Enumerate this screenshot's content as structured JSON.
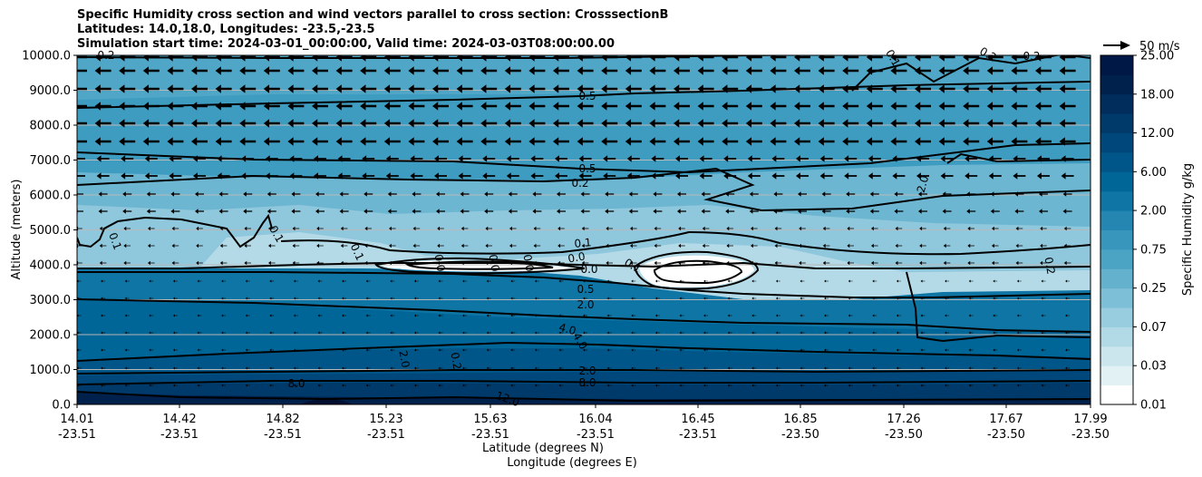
{
  "titles": [
    "Specific Humidity cross section and wind vectors parallel to cross section: CrosssectionB",
    "Latitudes: 14.0,18.0, Longitudes: -23.5,-23.5",
    "Simulation start time: 2024-03-01_00:00:00, Valid time: 2024-03-03T08:00:00.00"
  ],
  "chart_data": {
    "type": "contourf-cross-section",
    "title": "Specific Humidity cross section and wind vectors parallel to cross section: CrosssectionB",
    "ylabel": "Altitude (meters)",
    "xlabel_1": "Latitude (degrees N)",
    "xlabel_2": "Longitude (degrees E)",
    "ylim": [
      0,
      10000
    ],
    "y_ticks": [
      "0.0",
      "1000.0",
      "2000.0",
      "3000.0",
      "4000.0",
      "5000.0",
      "6000.0",
      "7000.0",
      "8000.0",
      "9000.0",
      "10000.0"
    ],
    "x_ticks_lat": [
      "14.01",
      "14.42",
      "14.82",
      "15.23",
      "15.63",
      "16.04",
      "16.45",
      "16.85",
      "17.26",
      "17.67",
      "17.99"
    ],
    "x_ticks_lon": [
      "-23.51",
      "-23.51",
      "-23.51",
      "-23.51",
      "-23.51",
      "-23.51",
      "-23.51",
      "-23.50",
      "-23.50",
      "-23.50",
      "-23.50"
    ],
    "colorbar": {
      "label": "Specific Humidity g/kg",
      "tick_labels": [
        "0.01",
        "0.03",
        "0.07",
        "0.25",
        "0.75",
        "2.00",
        "6.00",
        "12.00",
        "18.00",
        "25.00"
      ],
      "colors": [
        "#ffffff",
        "#e2f1f4",
        "#cbe6ed",
        "#b2dae6",
        "#97cddf",
        "#7cbfd6",
        "#63b1cd",
        "#4ca4c5",
        "#3896bc",
        "#2486b1",
        "#0f75a4",
        "#006597",
        "#005689",
        "#00487b",
        "#003a6b",
        "#002d5c",
        "#00214c",
        "#001845"
      ]
    },
    "contour_labels": [
      "0.2",
      "0.5",
      "0.5",
      "0.2",
      "0.1",
      "0.1",
      "0.1",
      "0.1",
      "0.0",
      "0.0",
      "0.0",
      "0.0",
      "0.0",
      "0.1",
      "0.2",
      "0.5",
      "2.0",
      "4.0",
      "4.0",
      "2.0",
      "0.2",
      "2.0",
      "8.0",
      "8.0",
      "12.0",
      "2.0",
      "0.2",
      "0.2",
      "0.1"
    ],
    "quiver_key": "50 m/s"
  }
}
